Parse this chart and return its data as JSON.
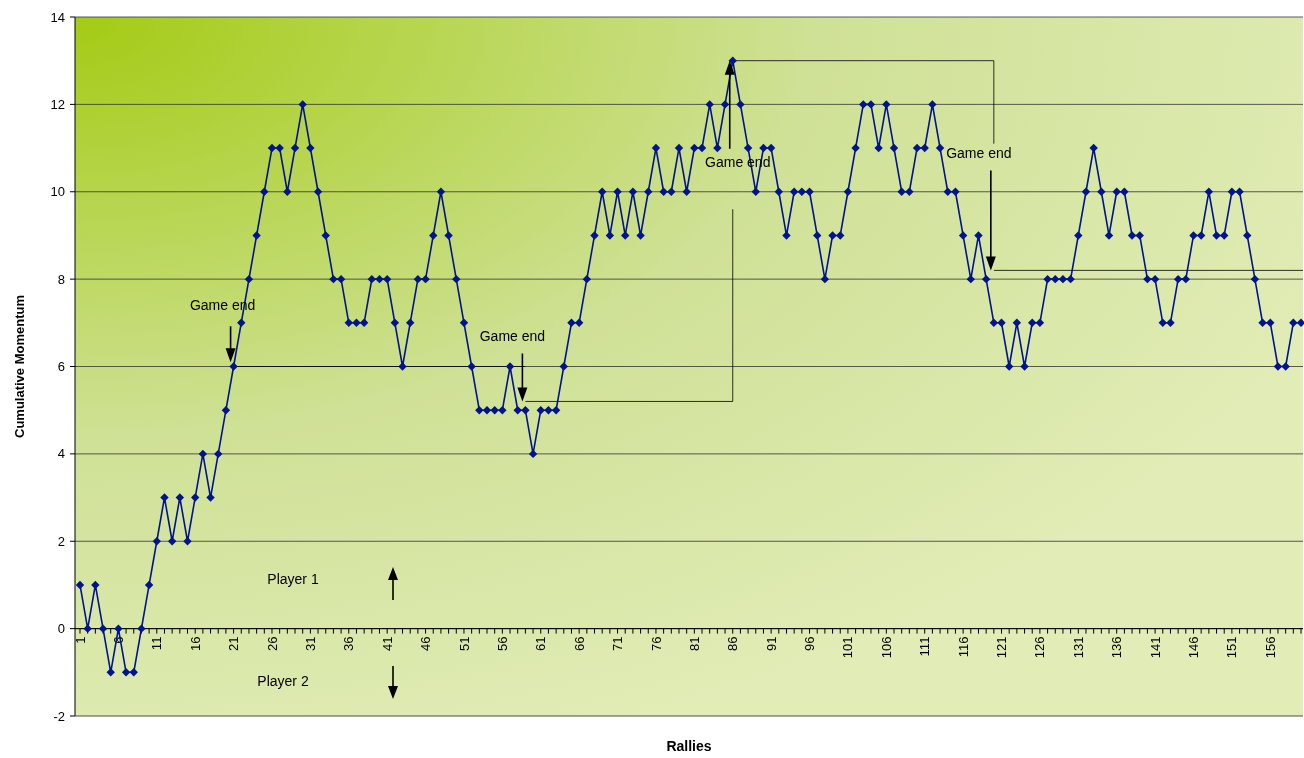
{
  "chart_data": {
    "type": "line",
    "xlabel": "Rallies",
    "ylabel": "Cumulative Momentum",
    "categories": [
      "1",
      null,
      null,
      null,
      null,
      "6",
      null,
      null,
      null,
      null,
      "11",
      null,
      null,
      null,
      null,
      "16",
      null,
      null,
      null,
      null,
      "21",
      null,
      null,
      null,
      null,
      "26",
      null,
      null,
      null,
      null,
      "31",
      null,
      null,
      null,
      null,
      "36",
      null,
      null,
      null,
      null,
      "41",
      null,
      null,
      null,
      null,
      "46",
      null,
      null,
      null,
      null,
      "51",
      null,
      null,
      null,
      null,
      "56",
      null,
      null,
      null,
      null,
      "61",
      null,
      null,
      null,
      null,
      "66",
      null,
      null,
      null,
      null,
      "71",
      null,
      null,
      null,
      null,
      "76",
      null,
      null,
      null,
      null,
      "81",
      null,
      null,
      null,
      null,
      "86",
      null,
      null,
      null,
      null,
      "91",
      null,
      null,
      null,
      null,
      "96",
      null,
      null,
      null,
      null,
      "101",
      null,
      null,
      null,
      null,
      "106",
      null,
      null,
      null,
      null,
      "111",
      null,
      null,
      null,
      null,
      "116",
      null,
      null,
      null,
      null,
      "121",
      null,
      null,
      null,
      null,
      "126",
      null,
      null,
      null,
      null,
      "131",
      null,
      null,
      null,
      null,
      "136",
      null,
      null,
      null,
      null,
      "141",
      null,
      null,
      null,
      null,
      "146",
      null,
      null,
      null,
      null,
      "151",
      null,
      null,
      null,
      null,
      "156",
      null,
      null,
      null,
      null
    ],
    "series": [
      {
        "color": "#00148c",
        "values": [
          1,
          0,
          1,
          0,
          -1,
          0,
          -1,
          -1,
          0,
          1,
          2,
          3,
          2,
          3,
          2,
          3,
          4,
          3,
          4,
          5,
          6,
          7,
          8,
          9,
          10,
          11,
          11,
          10,
          11,
          12,
          11,
          10,
          9,
          8,
          8,
          7,
          7,
          7,
          8,
          8,
          8,
          7,
          6,
          7,
          8,
          8,
          9,
          10,
          9,
          8,
          7,
          6,
          5,
          5,
          5,
          5,
          6,
          5,
          5,
          4,
          5,
          5,
          5,
          6,
          7,
          7,
          8,
          9,
          10,
          9,
          10,
          9,
          10,
          9,
          10,
          11,
          10,
          10,
          11,
          10,
          11,
          11,
          12,
          11,
          12,
          13,
          12,
          11,
          10,
          11,
          11,
          10,
          9,
          10,
          10,
          10,
          9,
          8,
          9,
          9,
          10,
          11,
          12,
          12,
          11,
          12,
          11,
          10,
          10,
          11,
          11,
          12,
          11,
          10,
          10,
          9,
          8,
          9,
          8,
          7,
          7,
          6,
          7,
          6,
          7,
          7,
          8,
          8,
          8,
          8,
          9,
          10,
          11,
          10,
          9,
          10,
          10,
          9,
          9,
          8,
          8,
          7,
          7,
          8,
          8,
          9,
          9,
          10,
          9,
          9,
          10,
          10,
          9,
          8,
          7,
          7,
          6,
          6,
          7,
          7
        ]
      }
    ],
    "ylim": [
      -2,
      14
    ],
    "yticks": [
      -2,
      0,
      2,
      4,
      6,
      8,
      10,
      12,
      14
    ],
    "grid": "y",
    "marker": "diamond",
    "line_style": "solid",
    "annotations": [
      "Game end",
      "Game end",
      "Game end",
      {
        "text": "Game end",
        "x": "86",
        "y": 13
      },
      "Player 1",
      "Player 2"
    ]
  }
}
